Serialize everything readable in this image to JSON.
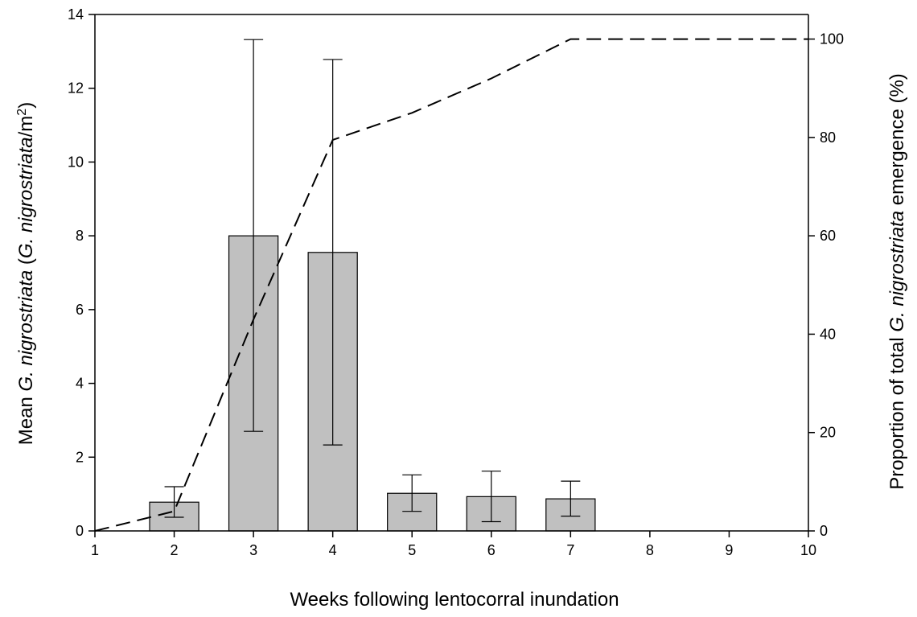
{
  "chart_data": {
    "type": "bar",
    "x_axis": {
      "label": "Weeks following lentocorral inundation",
      "range": [
        1,
        10
      ],
      "ticks": [
        1,
        2,
        3,
        4,
        5,
        6,
        7,
        8,
        9,
        10
      ]
    },
    "y_left": {
      "label_parts": [
        "Mean ",
        "G. nigrostriata",
        " (",
        "G. nigrostriata",
        "/m",
        "2",
        ")"
      ],
      "range": [
        0,
        14
      ],
      "ticks": [
        0,
        2,
        4,
        6,
        8,
        10,
        12,
        14
      ]
    },
    "y_right": {
      "label_parts": [
        "Proportion of total ",
        "G. nigrostriata",
        " emergence (%)"
      ],
      "range": [
        0,
        105
      ],
      "ticks": [
        0,
        20,
        40,
        60,
        80,
        100
      ]
    },
    "bars": {
      "x": [
        2,
        3,
        4,
        5,
        6,
        7
      ],
      "values": [
        0.78,
        8.0,
        7.55,
        1.02,
        0.93,
        0.87
      ],
      "err_low": [
        0.37,
        2.7,
        2.33,
        0.53,
        0.25,
        0.4
      ],
      "err_high": [
        1.2,
        13.32,
        12.78,
        1.52,
        1.62,
        1.35
      ],
      "color": "#c0c0c0"
    },
    "cumulative": {
      "style": "dashed",
      "x": [
        1,
        2,
        3,
        4,
        5,
        6,
        7,
        8,
        9,
        10
      ],
      "values": [
        0,
        4,
        43,
        79.5,
        85,
        92,
        100,
        100,
        100,
        100
      ]
    },
    "grid": false
  }
}
